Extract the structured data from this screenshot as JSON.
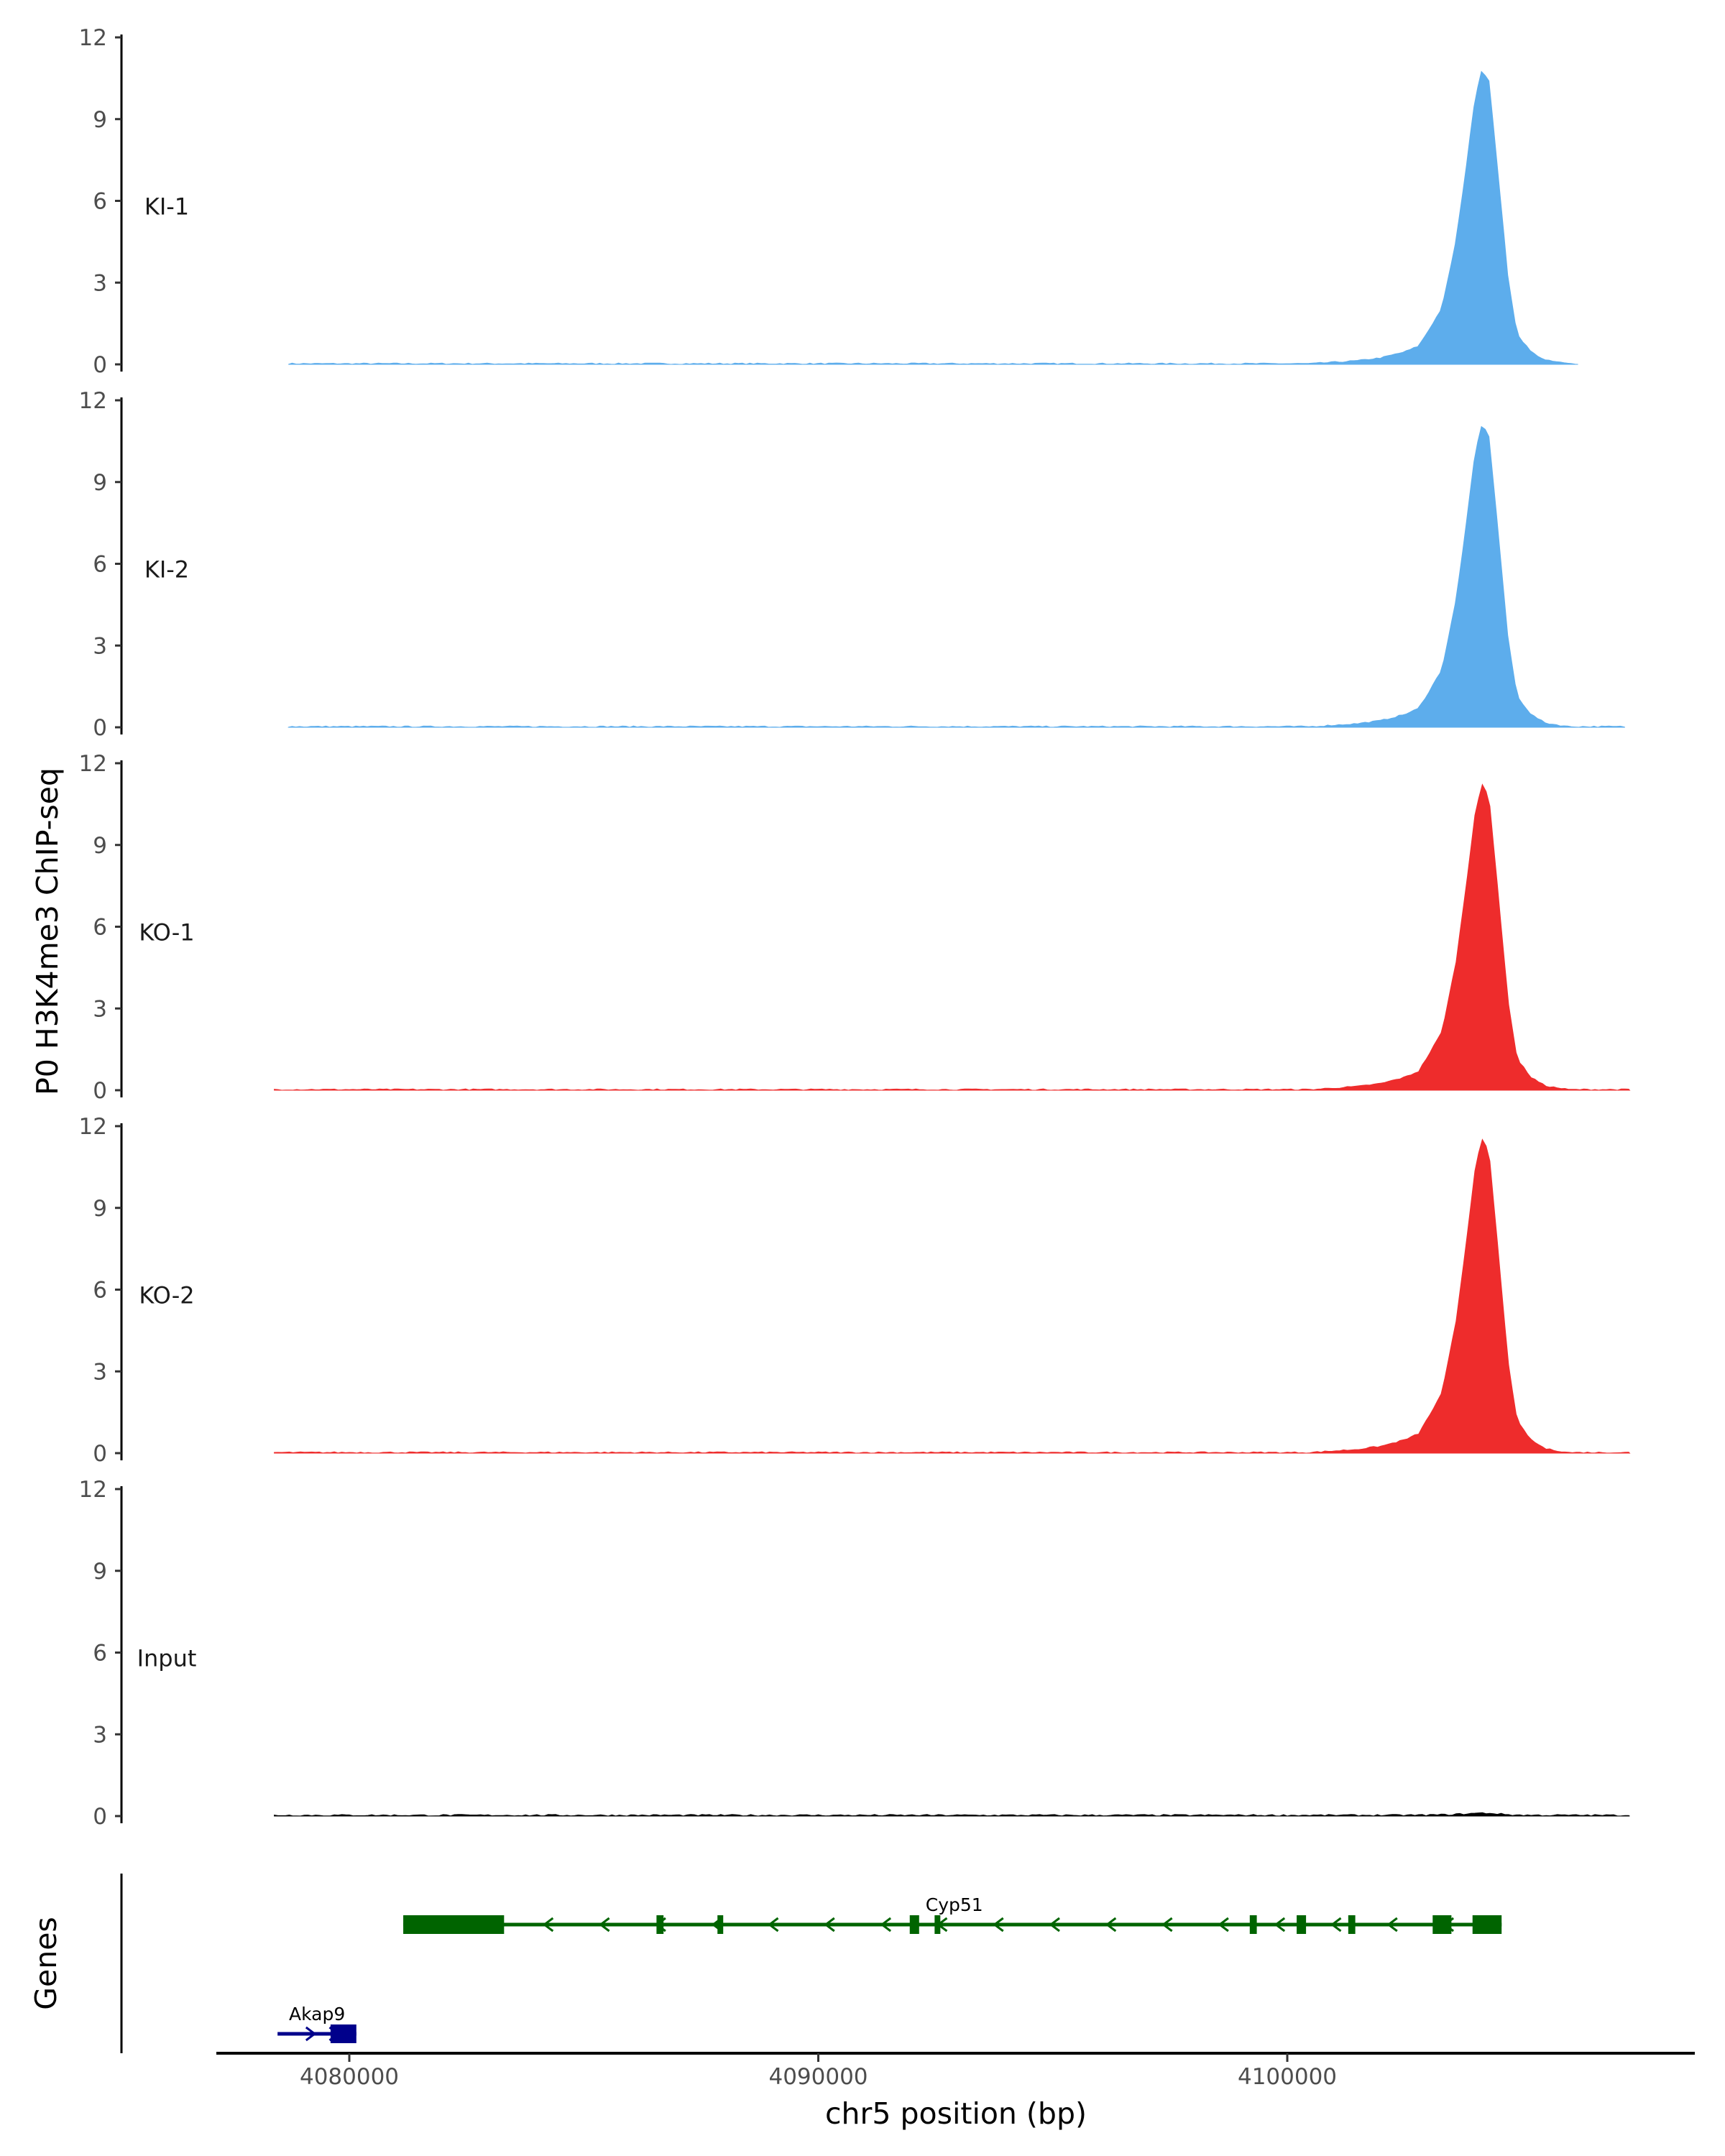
{
  "chart_data": {
    "type": "area",
    "ylabel": "P0 H3K4me3 ChIP-seq",
    "xlabel": "chr5 position (bp)",
    "xlim": [
      4077200,
      4108700
    ],
    "ylim": [
      0,
      12
    ],
    "y_ticks": [
      "0",
      "3",
      "6",
      "9",
      "12"
    ],
    "x_ticks": [
      {
        "value": 4080000,
        "label": "4080000"
      },
      {
        "value": 4090000,
        "label": "4090000"
      },
      {
        "value": 4100000,
        "label": "4100000"
      }
    ],
    "series": [
      {
        "name": "KI-1",
        "color": "#5DADEC",
        "x_range": [
          4078700,
          4106200
        ],
        "peak_scale": 10.8
      },
      {
        "name": "KI-2",
        "color": "#5DADEC",
        "x_range": [
          4078700,
          4107200
        ],
        "peak_scale": 11.1
      },
      {
        "name": "KO-1",
        "color": "#EE2C2C",
        "x_range": [
          4078400,
          4107300
        ],
        "peak_scale": 11.2
      },
      {
        "name": "KO-2",
        "color": "#EE2C2C",
        "x_range": [
          4078400,
          4107300
        ],
        "peak_scale": 11.5
      },
      {
        "name": "Input",
        "color": "#000000",
        "x_range": [
          4078400,
          4107300
        ],
        "peak_scale": 0.08
      }
    ],
    "peak_profile": {
      "x": [
        4100500,
        4101000,
        4101500,
        4102000,
        4102500,
        4102800,
        4103000,
        4103300,
        4103600,
        4103800,
        4104000,
        4104150,
        4104300,
        4104500,
        4104700,
        4104900,
        4105200,
        4105500,
        4106000
      ],
      "y": [
        0.0,
        0.005,
        0.01,
        0.02,
        0.04,
        0.06,
        0.11,
        0.19,
        0.42,
        0.65,
        0.9,
        1.0,
        0.96,
        0.64,
        0.3,
        0.1,
        0.04,
        0.012,
        0.0
      ]
    },
    "genes_panel": {
      "label": "Genes",
      "genes": [
        {
          "name": "Cyp51",
          "color": "#006400",
          "strand": "-",
          "start": 4081150,
          "end": 4104570,
          "exons": [
            [
              4081150,
              4083300
            ],
            [
              4086550,
              4086700
            ],
            [
              4087850,
              4087950
            ],
            [
              4091950,
              4092150
            ],
            [
              4092480,
              4092580
            ],
            [
              4099200,
              4099350
            ],
            [
              4100200,
              4100400
            ],
            [
              4101300,
              4101450
            ],
            [
              4103100,
              4103500
            ],
            [
              4103950,
              4104570
            ]
          ]
        },
        {
          "name": "Akap9",
          "color": "#00008B",
          "strand": "+",
          "start": 4078470,
          "end": 4080150,
          "exons": [
            [
              4079600,
              4080150
            ]
          ]
        }
      ]
    }
  }
}
